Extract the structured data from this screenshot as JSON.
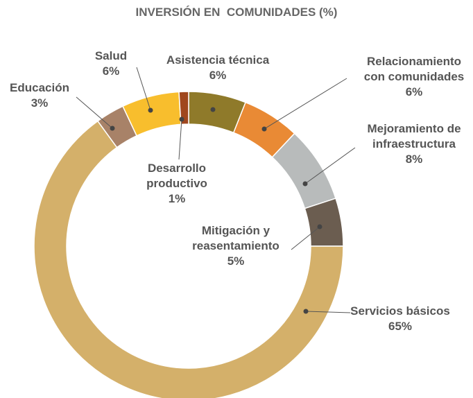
{
  "chart_data": {
    "type": "pie",
    "title": "INVERSIÓN EN  COMUNIDADES (%)",
    "categories": [
      "Asistencia técnica",
      "Relacionamiento con comunidades",
      "Mejoramiento de infraestructura",
      "Mitigación y reasentamiento",
      "Servicios básicos",
      "Educación",
      "Salud",
      "Desarrollo productivo"
    ],
    "values": [
      6,
      6,
      8,
      5,
      65,
      3,
      6,
      1
    ],
    "value_labels": [
      "6%",
      "6%",
      "8%",
      "5%",
      "65%",
      "3%",
      "6%",
      "1%"
    ],
    "colors": [
      "#8f7a2a",
      "#e98a35",
      "#b8bbbb",
      "#6b5d50",
      "#d4b06a",
      "#a88268",
      "#f8be2d",
      "#a0471e"
    ],
    "donut": true
  }
}
